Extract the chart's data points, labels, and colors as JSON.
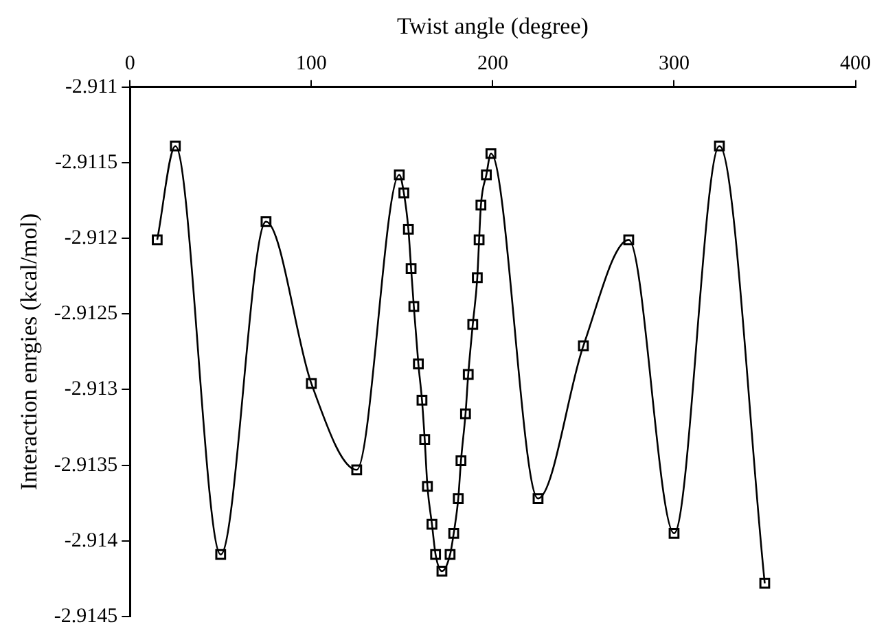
{
  "chart_data": {
    "type": "line",
    "xlabel": "Twist angle (degree)",
    "ylabel": "Interaction enrgies (kcal/mol)",
    "xlim": [
      0,
      400
    ],
    "xticks": [
      0,
      100,
      200,
      300,
      400
    ],
    "ylim": [
      -2.9145,
      -2.911
    ],
    "yticks": [
      -2.911,
      -2.9115,
      -2.912,
      -2.9125,
      -2.913,
      -2.9135,
      -2.914,
      -2.9145
    ],
    "grid": false,
    "legend": false,
    "marker": "square",
    "line_style": "solid",
    "series": [
      {
        "color": "#000000",
        "x": [
          15,
          25,
          50,
          75,
          100,
          125,
          148.5,
          151,
          153.5,
          155,
          156.5,
          159,
          161,
          162.5,
          164,
          166.5,
          168.5,
          172,
          176.5,
          178.5,
          181,
          182.5,
          185,
          186.5,
          189,
          191.5,
          192.5,
          193.5,
          196.5,
          199,
          225,
          250,
          275,
          300,
          325,
          350
        ],
        "values": [
          -2.91201,
          -2.91139,
          -2.91409,
          -2.91189,
          -2.91296,
          -2.91353,
          -2.91158,
          -2.9117,
          -2.91194,
          -2.9122,
          -2.91245,
          -2.91283,
          -2.91307,
          -2.91333,
          -2.91364,
          -2.91389,
          -2.91409,
          -2.9142,
          -2.91409,
          -2.91395,
          -2.91372,
          -2.91347,
          -2.91316,
          -2.9129,
          -2.91257,
          -2.91226,
          -2.91201,
          -2.91178,
          -2.91158,
          -2.91144,
          -2.91372,
          -2.91271,
          -2.91201,
          -2.91395,
          -2.91139,
          -2.91428
        ]
      }
    ]
  }
}
